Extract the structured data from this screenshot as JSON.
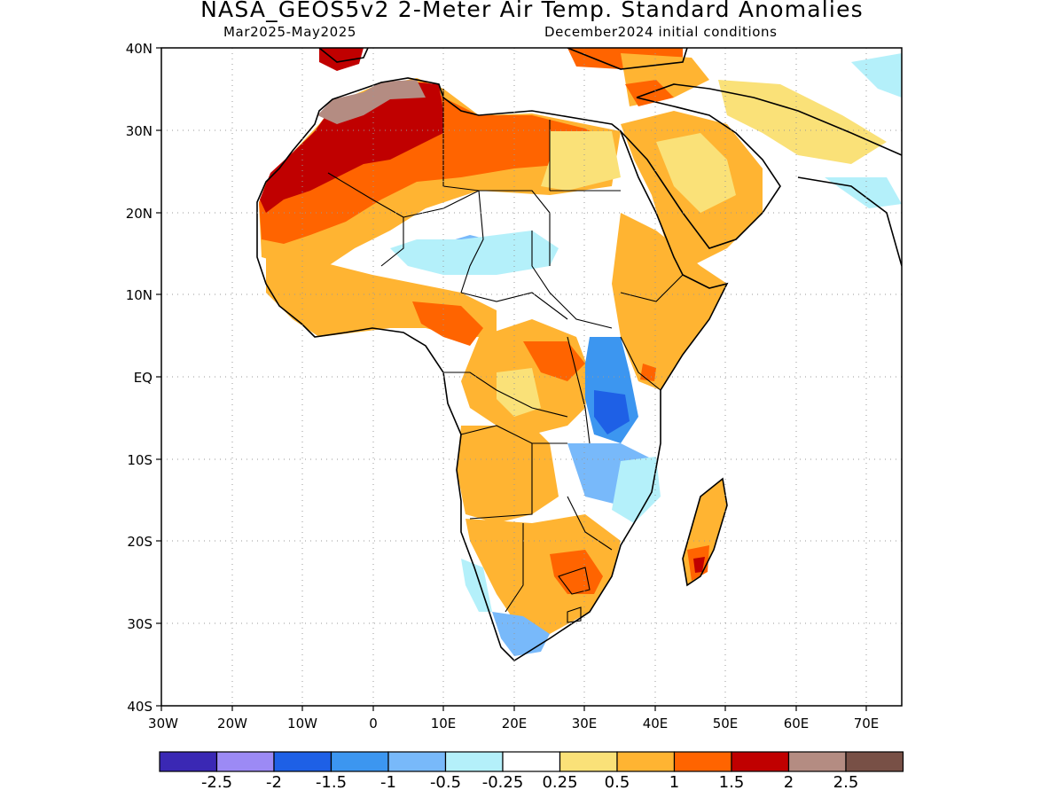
{
  "title": "NASA_GEOS5v2 2-Meter Air Temp. Standard Anomalies",
  "subtitle_left": "Mar2025-May2025",
  "subtitle_right": "December2024 initial conditions",
  "map": {
    "lat_labels": [
      "40N",
      "30N",
      "20N",
      "10N",
      "EQ",
      "10S",
      "20S",
      "30S",
      "40S"
    ],
    "lon_labels": [
      "30W",
      "20W",
      "10W",
      "0",
      "10E",
      "20E",
      "30E",
      "40E",
      "50E",
      "60E",
      "70E"
    ],
    "lat_range": [
      -40,
      40
    ],
    "lon_range": [
      -30,
      75
    ],
    "grid": "dotted",
    "region": "Africa and Middle East"
  },
  "colorbar": {
    "colors": [
      "#3a28b4",
      "#9c8af5",
      "#1e60e6",
      "#3c96f0",
      "#78b9fa",
      "#b4f0fa",
      "#ffffff",
      "#fae178",
      "#ffb432",
      "#ff6400",
      "#c00000",
      "#b48c82",
      "#785046"
    ],
    "labels": [
      "-2.5",
      "-2",
      "-1.5",
      "-1",
      "-0.5",
      "-0.25",
      "0.25",
      "0.5",
      "1",
      "1.5",
      "2",
      "2.5"
    ]
  }
}
